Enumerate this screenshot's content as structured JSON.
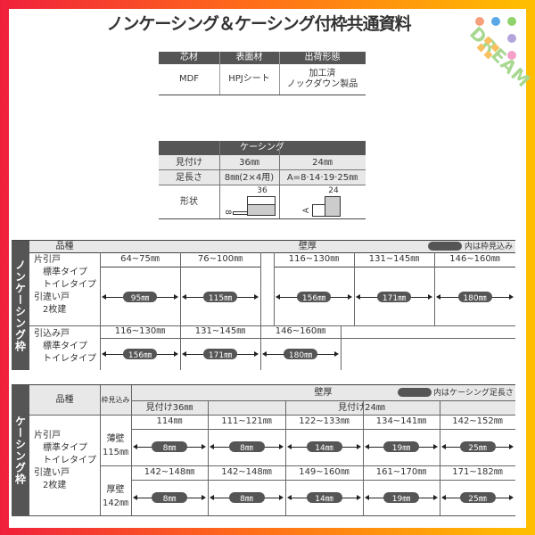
{
  "title": "ノンケーシング＆ケーシング付枠共通資料",
  "logo": {
    "text": "DREAM",
    "dot_colors": [
      "#f5a07a",
      "#5aa8e8",
      "#8fd36a",
      "#b4a4dc",
      "#f4a0c8"
    ]
  },
  "material_table": {
    "headers": [
      "芯材",
      "表面材",
      "出荷形態"
    ],
    "values": [
      "MDF",
      "HPJシート",
      "加工済\nノックダウン製品"
    ]
  },
  "casing_table": {
    "title": "ケーシング",
    "rows": [
      {
        "label": "見付け",
        "c1": "36㎜",
        "c2": "24㎜"
      },
      {
        "label": "足長さ",
        "c1": "8㎜(2×4用)",
        "c2": "A=8·14·19·25㎜"
      }
    ],
    "shape_label": "形状",
    "shape1": {
      "top": "36",
      "side": "8"
    },
    "shape2": {
      "top": "24",
      "side": "A"
    }
  },
  "noncasing": {
    "band": "ノンケーシング枠",
    "col_type": "品種",
    "col_wall": "壁厚",
    "legend": "内は枠見込み",
    "group1": {
      "types": "片引戸\n　標準タイプ\n　トイレタイプ\n引違い戸\n　2枚建",
      "ranges": [
        "64~75㎜",
        "76~100㎜",
        "116~130㎜",
        "131~145㎜",
        "146~160㎜"
      ],
      "values": [
        "95㎜",
        "115㎜",
        "156㎜",
        "171㎜",
        "180㎜"
      ]
    },
    "group2": {
      "types": "引込み戸\n　標準タイプ\n　トイレタイプ",
      "ranges": [
        "116~130㎜",
        "131~145㎜",
        "146~160㎜"
      ],
      "values": [
        "156㎜",
        "171㎜",
        "180㎜"
      ]
    }
  },
  "casing": {
    "band": "ケーシング枠",
    "col_type": "品種",
    "col_depth": "枠見込み",
    "col_wall": "壁厚",
    "legend": "内はケーシング足長さ",
    "sub36": "見付け36㎜",
    "sub24": "見付け24㎜",
    "types": "片引戸\n　標準タイプ\n　トイレタイプ\n引違い戸\n　2枚建",
    "rows": [
      {
        "depth": "薄壁\n115㎜",
        "ranges": [
          "114㎜",
          "111~121㎜",
          "122~133㎜",
          "134~141㎜",
          "142~152㎜"
        ],
        "values": [
          "8㎜",
          "8㎜",
          "14㎜",
          "19㎜",
          "25㎜"
        ]
      },
      {
        "depth": "厚壁\n142㎜",
        "ranges": [
          "142~148㎜",
          "142~148㎜",
          "149~160㎜",
          "161~170㎜",
          "171~182㎜"
        ],
        "values": [
          "8㎜",
          "8㎜",
          "14㎜",
          "19㎜",
          "25㎜"
        ]
      }
    ]
  }
}
